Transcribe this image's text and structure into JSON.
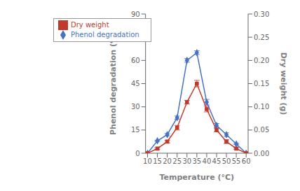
{
  "chart_data": {
    "type": "line",
    "xlabel": "Temperature (°C)",
    "ylabel": "Phenol degradation (%)",
    "y2label": "Dry weight (g)",
    "x": [
      10,
      15,
      20,
      25,
      30,
      35,
      40,
      45,
      50,
      55,
      60
    ],
    "xlim": [
      9,
      61
    ],
    "xticks": [
      10,
      15,
      20,
      25,
      30,
      35,
      40,
      45,
      50,
      55,
      60
    ],
    "ylim": [
      0,
      90
    ],
    "yticks": [
      0,
      15,
      30,
      45,
      60,
      75,
      90
    ],
    "y2lim": [
      0,
      0.3
    ],
    "y2ticks": [
      {
        "value": 0,
        "label": "0.00"
      },
      {
        "value": 0.05,
        "label": "0.05"
      },
      {
        "value": 0.1,
        "label": "0.10"
      },
      {
        "value": 0.15,
        "label": "0.15"
      },
      {
        "value": 0.2,
        "label": "0.20"
      },
      {
        "value": 0.25,
        "label": "0.25"
      },
      {
        "value": 0.3,
        "label": "0.30"
      }
    ],
    "grid": false,
    "legend": "upper left",
    "series": [
      {
        "name": "Phenol degradation",
        "color": "#4472C4",
        "marker": "diamond",
        "values": [
          0,
          8,
          12,
          23,
          60,
          65,
          33,
          18,
          12,
          6,
          0
        ],
        "error": [
          0,
          0.4,
          0.8,
          1.0,
          1.2,
          1.2,
          1.8,
          1.2,
          1.2,
          0.4,
          0
        ]
      },
      {
        "name": "Dry weight",
        "color": "#C0392B",
        "marker": "square",
        "axis": "y2",
        "values": [
          0,
          0.01,
          0.025,
          0.055,
          0.11,
          0.15,
          0.095,
          0.05,
          0.025,
          0.01,
          0
        ],
        "error": [
          0,
          0.002,
          0.003,
          0.005,
          0.004,
          0.007,
          0.006,
          0.004,
          0.004,
          0.002,
          0
        ]
      }
    ]
  }
}
